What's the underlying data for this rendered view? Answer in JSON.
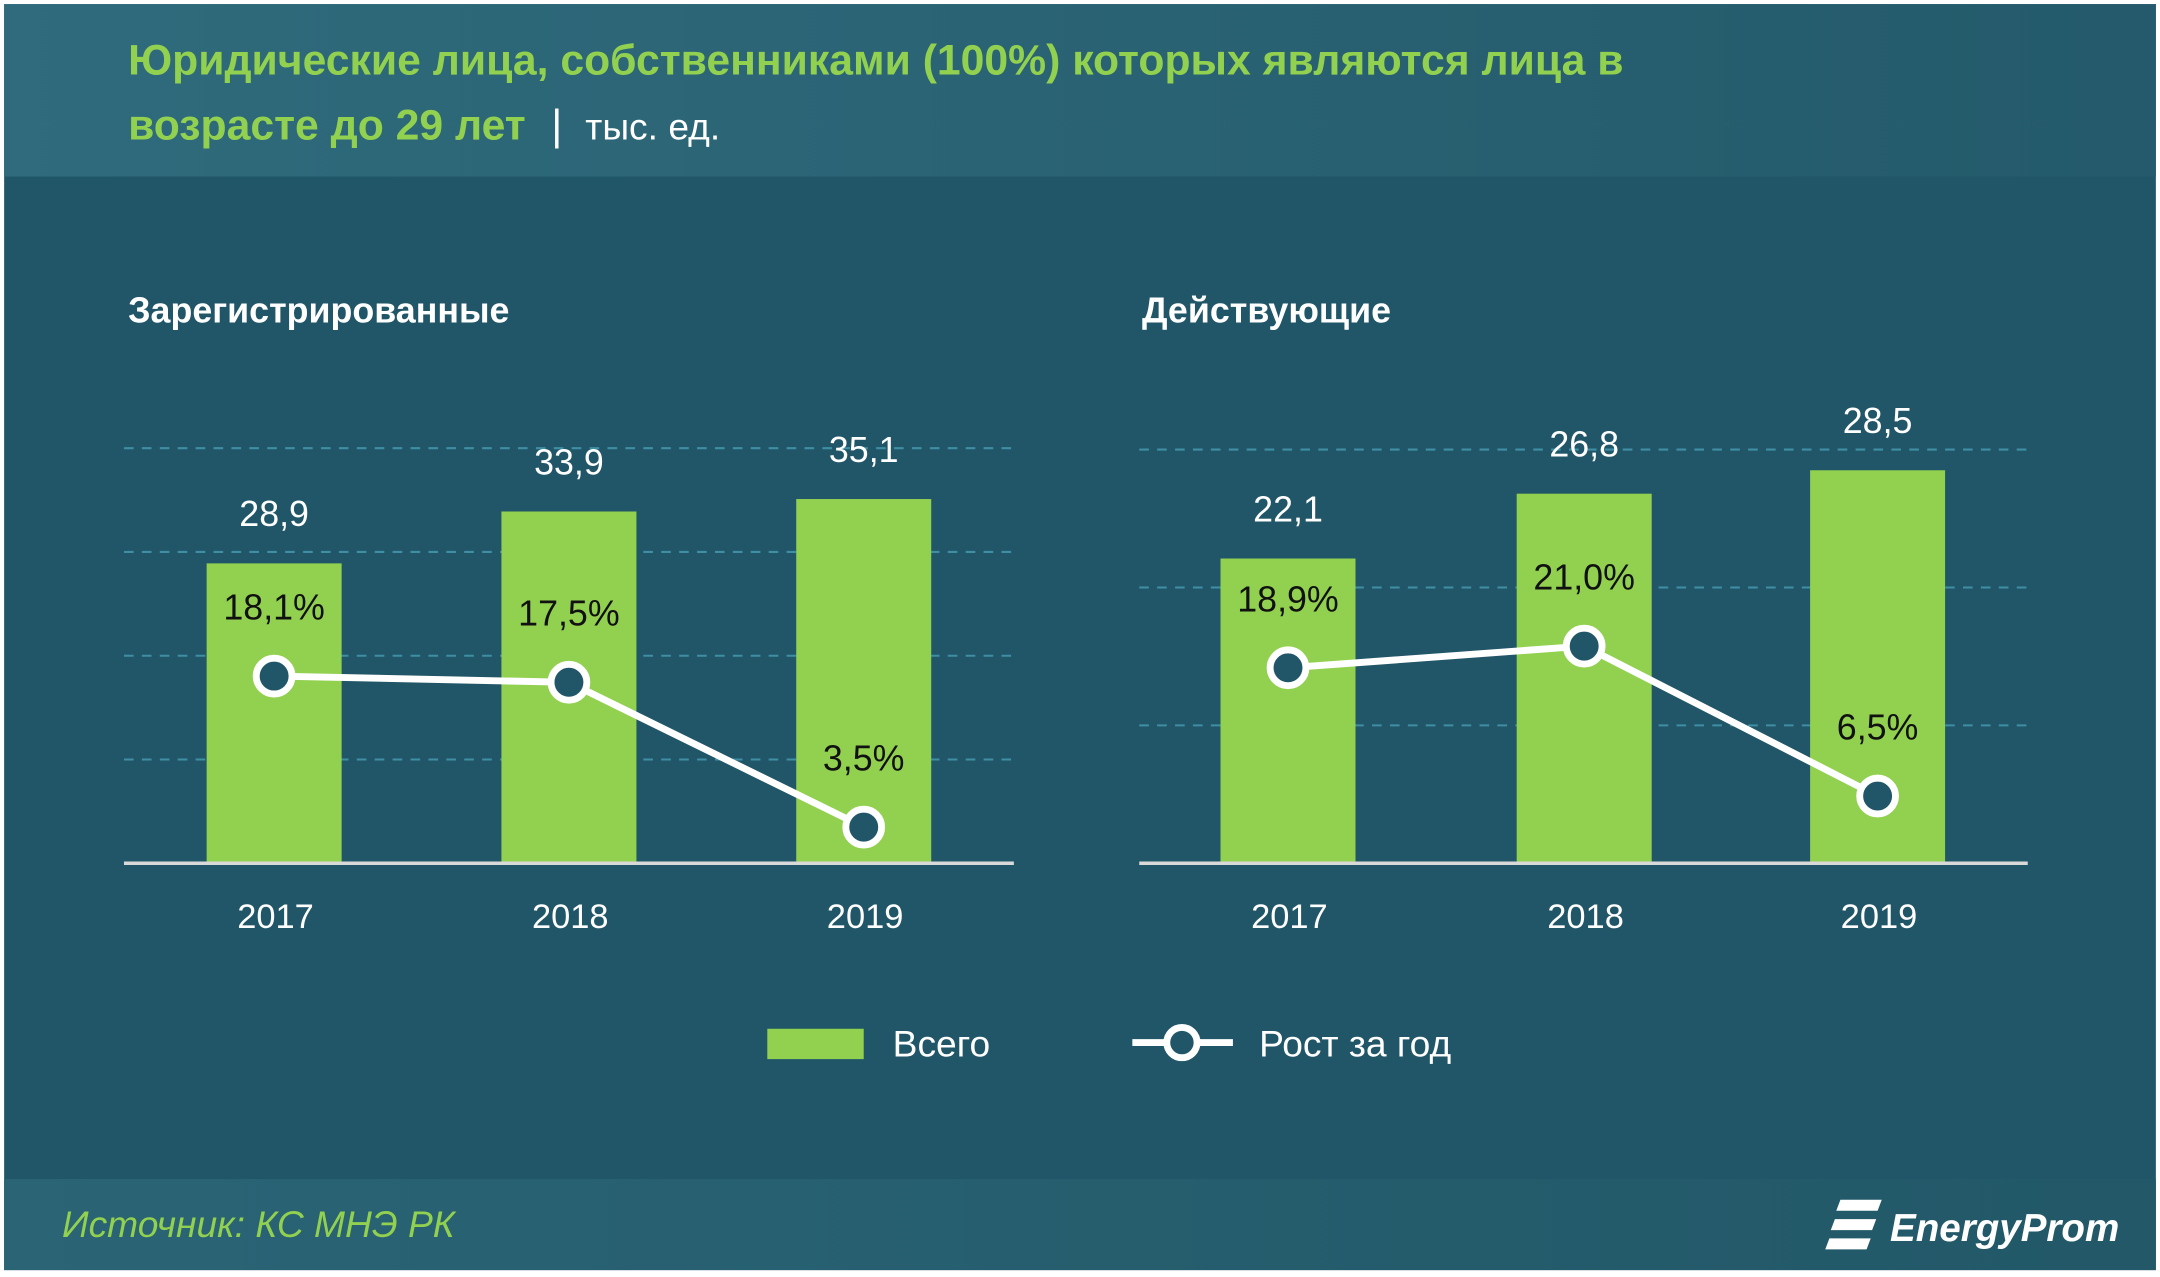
{
  "title": {
    "line1": "Юридические лица, собственниками (100%)  которых являются лица в",
    "line2": "возрасте до 29 лет",
    "separator": "|",
    "unit": "тыс. ед."
  },
  "legend": {
    "bars": "Всего",
    "line": "Рост за год"
  },
  "footer": {
    "source": "Источник: КС МНЭ РК",
    "logo": "EnergyProm"
  },
  "colors": {
    "background": "#215668",
    "header": "#2c6779",
    "bar": "#92d050",
    "accent_text": "#92d050",
    "line": "#ffffff",
    "grid": "#3f8ea3"
  },
  "chart_data": [
    {
      "type": "bar",
      "title": "Зарегистрированные",
      "categories": [
        "2017",
        "2018",
        "2019"
      ],
      "series": [
        {
          "name": "Всего",
          "type": "bar",
          "values": [
            28.9,
            33.9,
            35.1
          ],
          "labels": [
            "28,9",
            "33,9",
            "35,1"
          ]
        },
        {
          "name": "Рост за год",
          "type": "line",
          "values": [
            18.1,
            17.5,
            3.5
          ],
          "labels": [
            "18,1%",
            "17,5%",
            "3,5%"
          ]
        }
      ],
      "ylim": [
        0,
        40
      ],
      "grid": true
    },
    {
      "type": "bar",
      "title": "Действующие",
      "categories": [
        "2017",
        "2018",
        "2019"
      ],
      "series": [
        {
          "name": "Всего",
          "type": "bar",
          "values": [
            22.1,
            26.8,
            28.5
          ],
          "labels": [
            "22,1",
            "26,8",
            "28,5"
          ]
        },
        {
          "name": "Рост за год",
          "type": "line",
          "values": [
            18.9,
            21.0,
            6.5
          ],
          "labels": [
            "18,9%",
            "21,0%",
            "6,5%"
          ]
        }
      ],
      "ylim": [
        0,
        30
      ],
      "grid": true
    }
  ]
}
